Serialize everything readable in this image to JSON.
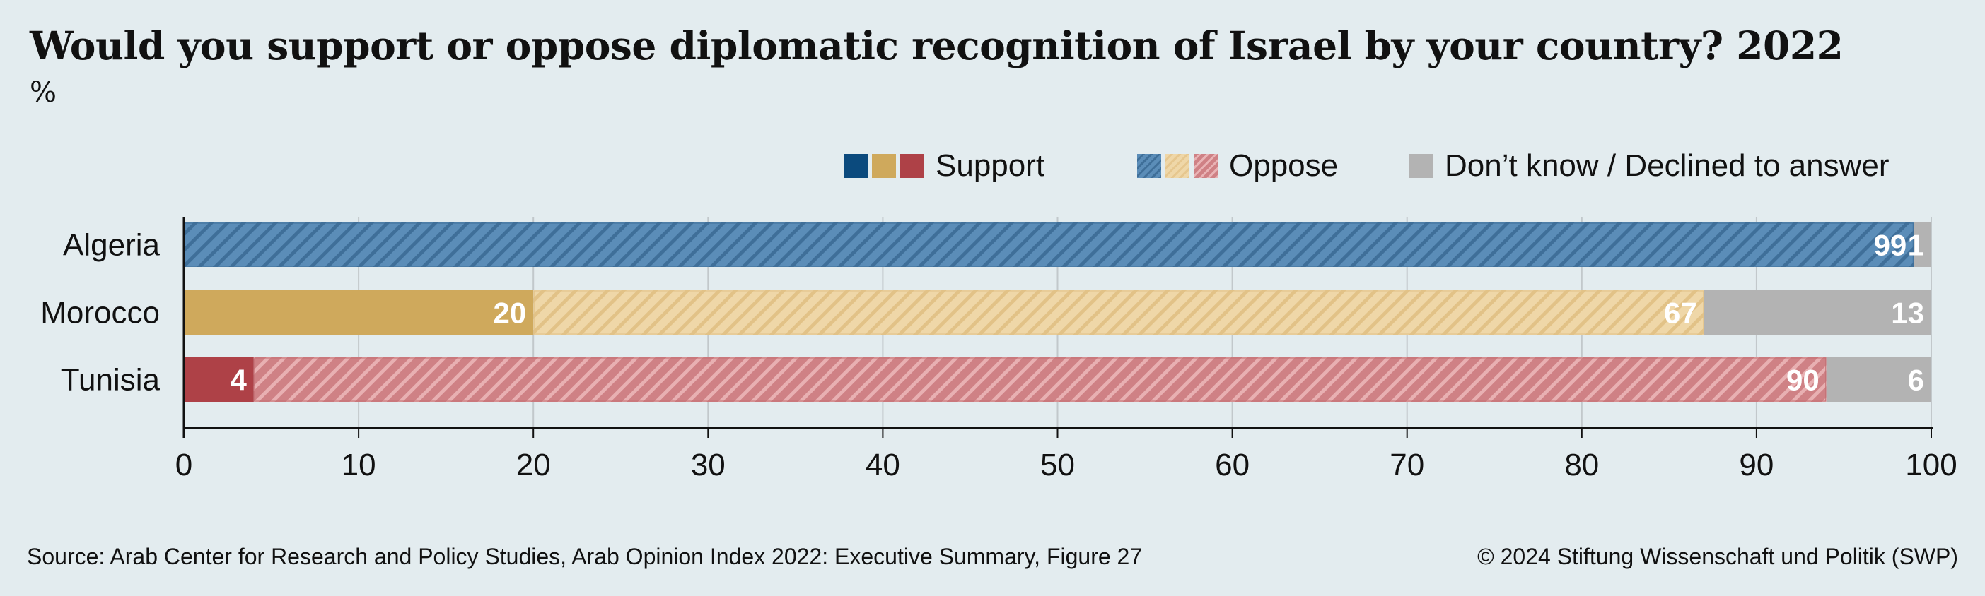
{
  "header": {
    "title": "Would you support or oppose diplomatic recognition of Israel by your country? 2022",
    "subtitle": "%"
  },
  "legend": {
    "items": [
      {
        "label": "Support"
      },
      {
        "label": "Oppose"
      },
      {
        "label": "Don’t know / Declined to answer"
      }
    ]
  },
  "colors": {
    "background": "#e3ecef",
    "algeria_support": "#0b4a7d",
    "algeria_oppose": "#5b8db8",
    "morocco_support": "#cfa95c",
    "morocco_oppose": "#efd7a8",
    "tunisia_support": "#ae4147",
    "tunisia_oppose": "#cf8185",
    "dont_know": "#b3b3b3",
    "grid": "#c2c8cb",
    "axis": "#111111"
  },
  "chart_data": {
    "type": "bar",
    "orientation": "horizontal",
    "stacked": true,
    "categories": [
      "Algeria",
      "Morocco",
      "Tunisia"
    ],
    "series": [
      {
        "name": "Support",
        "values": [
          0,
          20,
          4
        ]
      },
      {
        "name": "Oppose",
        "values": [
          99,
          67,
          90
        ]
      },
      {
        "name": "Don’t know / Declined to answer",
        "values": [
          1,
          13,
          6
        ]
      }
    ],
    "data_labels": [
      [
        "",
        "99",
        "1"
      ],
      [
        "20",
        "67",
        "13"
      ],
      [
        "4",
        "90",
        "6"
      ]
    ],
    "xlim": [
      0,
      100
    ],
    "xticks": [
      0,
      10,
      20,
      30,
      40,
      50,
      60,
      70,
      80,
      90,
      100
    ],
    "tick_labels": [
      "0",
      "10",
      "20",
      "30",
      "40",
      "50",
      "60",
      "70",
      "80",
      "90",
      "100"
    ],
    "grid": true,
    "legend_position": "top-right"
  },
  "footer": {
    "source": "Source: Arab Center for Research and Policy Studies, Arab Opinion Index 2022: Executive Summary, Figure 27",
    "copyright": "© 2024 Stiftung Wissenschaft und Politik (SWP)"
  }
}
